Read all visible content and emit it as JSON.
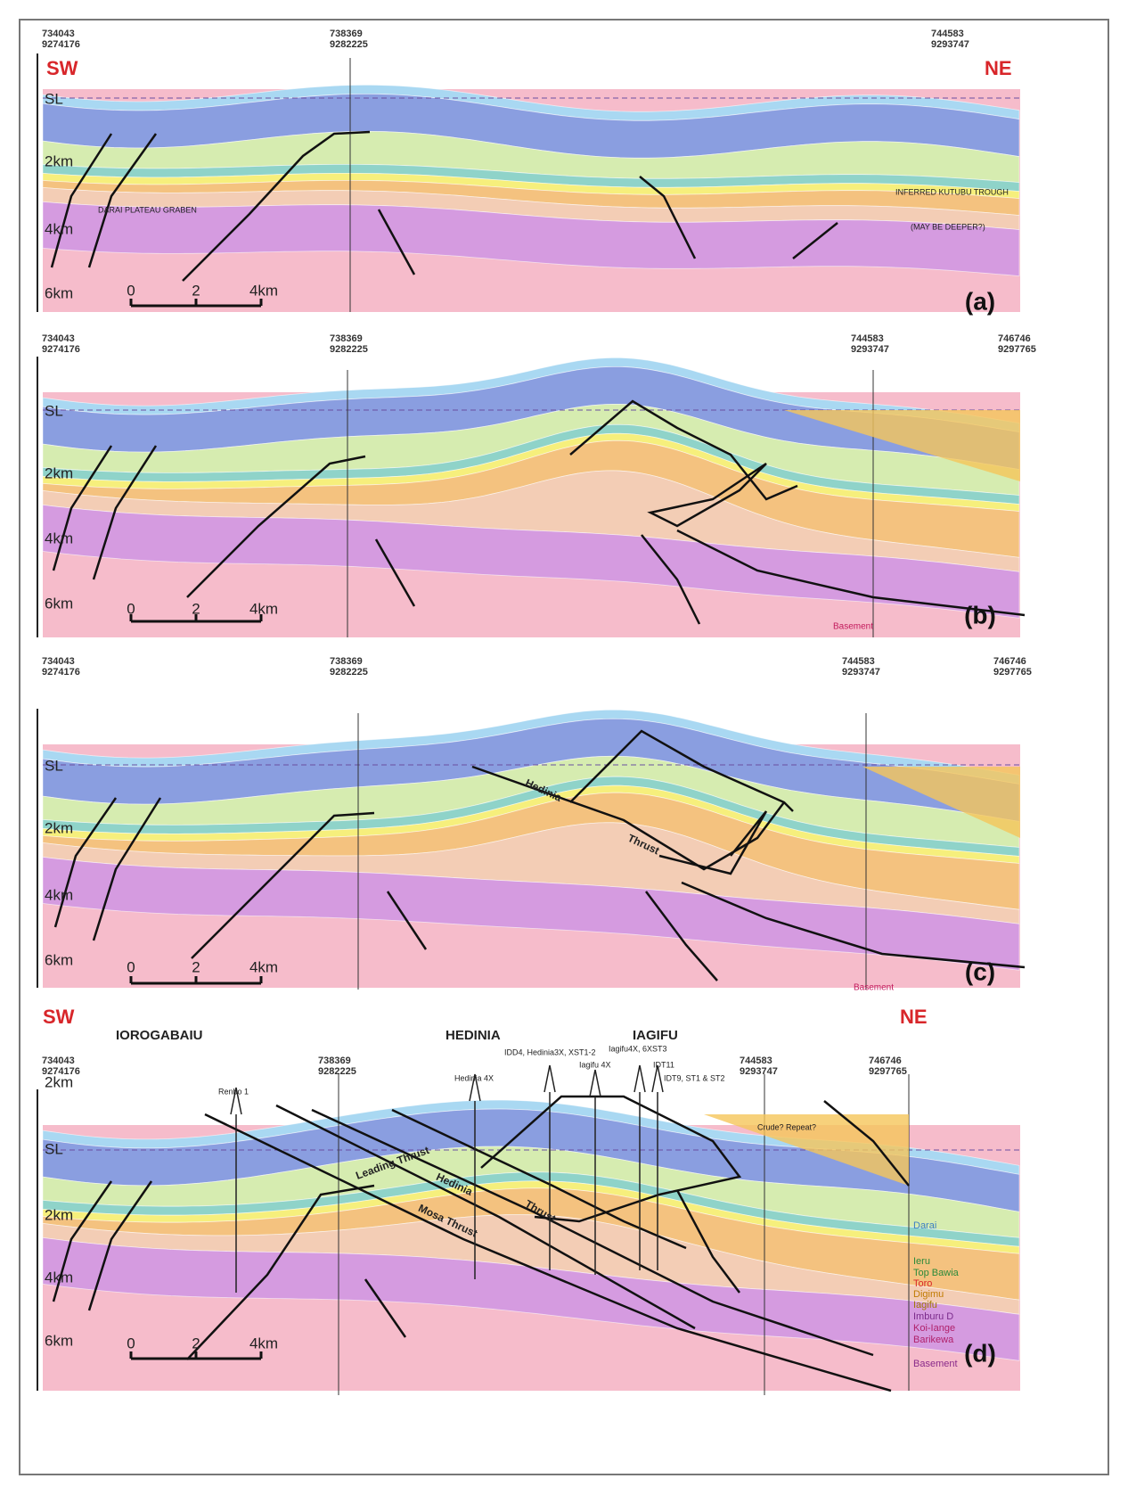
{
  "panels": [
    {
      "label": "(a)",
      "sw": "SW",
      "ne": "NE",
      "coordinates": [
        {
          "easting": "734043",
          "northing": "9274176"
        },
        {
          "easting": "738369",
          "northing": "9282225"
        },
        {
          "easting": "744583",
          "northing": "9293747"
        }
      ],
      "depth_labels": [
        "SL",
        "2km",
        "4km",
        "6km"
      ],
      "scale_labels": [
        "0",
        "2",
        "4km"
      ],
      "annotations": [
        "DARAI PLATEAU GRABEN",
        "INFERRED KUTUBU TROUGH",
        "(MAY BE DEEPER?)"
      ]
    },
    {
      "label": "(b)",
      "coordinates": [
        {
          "easting": "734043",
          "northing": "9274176"
        },
        {
          "easting": "738369",
          "northing": "9282225"
        },
        {
          "easting": "744583",
          "northing": "9293747"
        },
        {
          "easting": "746746",
          "northing": "9297765"
        }
      ],
      "depth_labels": [
        "SL",
        "2km",
        "4km",
        "6km"
      ],
      "scale_labels": [
        "0",
        "2",
        "4km"
      ],
      "annotations": [
        "Basement"
      ]
    },
    {
      "label": "(c)",
      "coordinates": [
        {
          "easting": "734043",
          "northing": "9274176"
        },
        {
          "easting": "738369",
          "northing": "9282225"
        },
        {
          "easting": "744583",
          "northing": "9293747"
        },
        {
          "easting": "746746",
          "northing": "9297765"
        }
      ],
      "depth_labels": [
        "SL",
        "2km",
        "4km",
        "6km"
      ],
      "scale_labels": [
        "0",
        "2",
        "4km"
      ],
      "annotations": [
        "Hedinia",
        "Thrust",
        "Basement"
      ]
    },
    {
      "label": "(d)",
      "sw": "SW",
      "ne": "NE",
      "fields": [
        "IOROGABAIU",
        "HEDINIA",
        "IAGIFU"
      ],
      "coordinates": [
        {
          "easting": "734043",
          "northing": "9274176"
        },
        {
          "easting": "738369",
          "northing": "9282225"
        },
        {
          "easting": "744583",
          "northing": "9293747"
        },
        {
          "easting": "746746",
          "northing": "9297765"
        }
      ],
      "depth_labels": [
        "2km",
        "SL",
        "2km",
        "4km",
        "6km"
      ],
      "scale_labels": [
        "0",
        "2",
        "4km"
      ],
      "wells": [
        "Renbo 1",
        "Hedinia 4X",
        "IDD4, Hedinia3X, XST1-2",
        "Iagifu 4X",
        "Iagifu4X, 6XST3",
        "IDT11",
        "IDT9, ST1 & ST2"
      ],
      "annotations": [
        "Hedinia",
        "Thrust",
        "Leading Thrust",
        "Mosa Thrust",
        "Crude? Repeat?"
      ],
      "formations": [
        "Darai",
        "Ieru",
        "Top Bawia",
        "Toro",
        "Digimu",
        "Iagifu",
        "Imburu D",
        "Koi-Iange",
        "Barikewa",
        "Basement"
      ]
    }
  ]
}
